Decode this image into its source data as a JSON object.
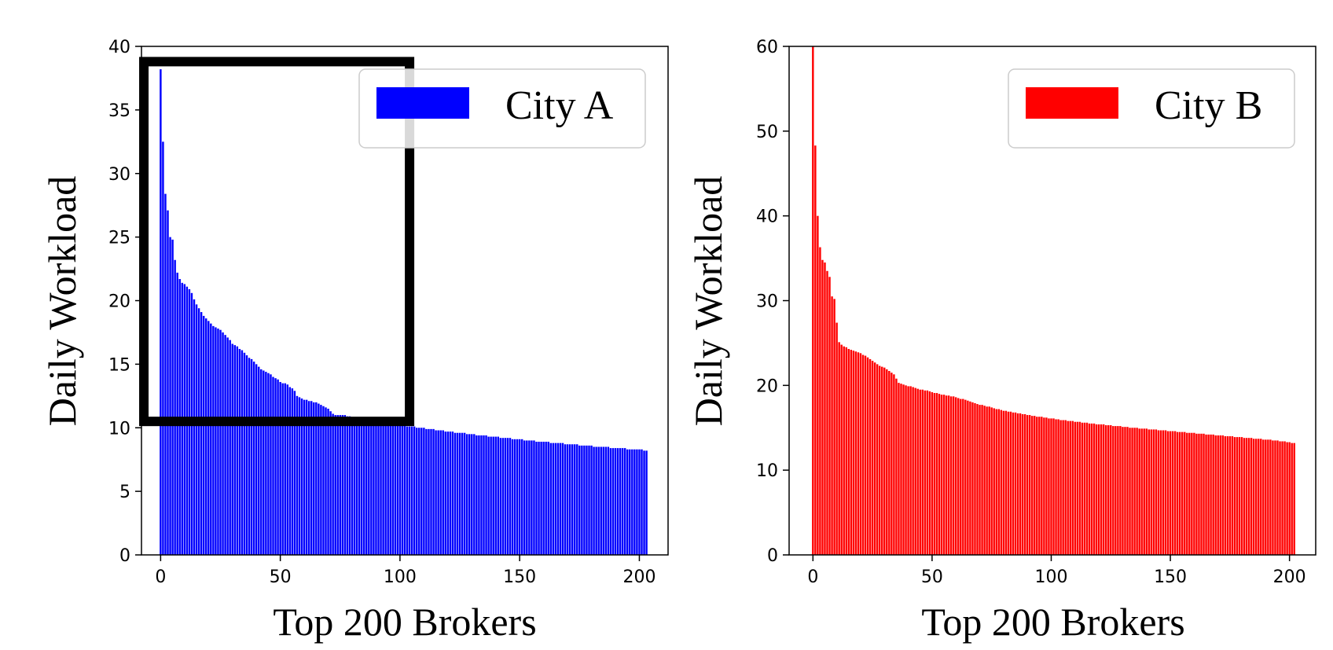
{
  "chart_data": [
    {
      "type": "bar",
      "panel": "left",
      "xlabel": "Top 200 Brokers",
      "ylabel": "Daily Workload",
      "xlim": [
        -8,
        212
      ],
      "ylim": [
        0,
        40
      ],
      "xticks": [
        "0",
        "50",
        "100",
        "150",
        "200"
      ],
      "yticks": [
        "0",
        "5",
        "10",
        "15",
        "20",
        "25",
        "30",
        "35",
        "40"
      ],
      "legend_position": "top-right",
      "series": [
        {
          "name": "City A",
          "color": "#0000ff",
          "values": [
            38.2,
            32.5,
            28.4,
            27.1,
            25.0,
            24.8,
            23.2,
            22.2,
            21.7,
            21.4,
            21.3,
            21.1,
            20.9,
            20.6,
            20.1,
            19.7,
            19.4,
            19.1,
            18.8,
            18.6,
            18.4,
            18.2,
            18.0,
            17.9,
            17.8,
            17.7,
            17.5,
            17.3,
            17.1,
            16.9,
            16.6,
            16.5,
            16.4,
            16.2,
            16.1,
            15.9,
            15.7,
            15.5,
            15.4,
            15.2,
            15.0,
            14.8,
            14.6,
            14.5,
            14.4,
            14.3,
            14.2,
            14.0,
            13.9,
            13.8,
            13.6,
            13.5,
            13.5,
            13.4,
            13.2,
            13.1,
            12.9,
            12.5,
            12.4,
            12.3,
            12.2,
            12.2,
            12.1,
            12.1,
            12.0,
            12.0,
            11.9,
            11.8,
            11.7,
            11.6,
            11.5,
            11.3,
            11.1,
            11.0,
            11.0,
            11.0,
            11.0,
            11.0,
            10.9,
            10.9,
            10.8,
            10.8,
            10.8,
            10.7,
            10.7,
            10.6,
            10.6,
            10.6,
            10.6,
            10.5,
            10.5,
            10.5,
            10.5,
            10.4,
            10.4,
            10.4,
            10.3,
            10.3,
            10.3,
            10.2,
            10.2,
            10.2,
            10.2,
            10.1,
            10.1,
            10.1,
            10.1,
            10.0,
            10.0,
            10.0,
            10.0,
            9.9,
            9.9,
            9.9,
            9.9,
            9.8,
            9.8,
            9.8,
            9.8,
            9.7,
            9.7,
            9.7,
            9.7,
            9.6,
            9.6,
            9.6,
            9.6,
            9.6,
            9.5,
            9.5,
            9.5,
            9.5,
            9.4,
            9.4,
            9.4,
            9.4,
            9.4,
            9.3,
            9.3,
            9.3,
            9.3,
            9.3,
            9.2,
            9.2,
            9.2,
            9.2,
            9.2,
            9.1,
            9.1,
            9.1,
            9.1,
            9.1,
            9.0,
            9.0,
            9.0,
            9.0,
            9.0,
            8.9,
            8.9,
            8.9,
            8.9,
            8.9,
            8.9,
            8.8,
            8.8,
            8.8,
            8.8,
            8.8,
            8.8,
            8.7,
            8.7,
            8.7,
            8.7,
            8.7,
            8.7,
            8.6,
            8.6,
            8.6,
            8.6,
            8.6,
            8.6,
            8.5,
            8.5,
            8.5,
            8.5,
            8.5,
            8.5,
            8.5,
            8.4,
            8.4,
            8.4,
            8.4,
            8.4,
            8.4,
            8.4,
            8.3,
            8.3,
            8.3,
            8.3,
            8.3,
            8.3,
            8.3,
            8.2,
            8.2
          ]
        }
      ],
      "annotations": [
        {
          "type": "highlight-box",
          "x_range": [
            -7,
            104
          ],
          "y_range": [
            10.5,
            38.8
          ],
          "color": "#000000"
        }
      ]
    },
    {
      "type": "bar",
      "panel": "right",
      "xlabel": "Top 200 Brokers",
      "ylabel": "Daily Workload",
      "xlim": [
        -10,
        211
      ],
      "ylim": [
        0,
        60
      ],
      "xticks": [
        "0",
        "50",
        "100",
        "150",
        "200"
      ],
      "yticks": [
        "0",
        "10",
        "20",
        "30",
        "40",
        "50",
        "60"
      ],
      "legend_position": "top-right",
      "series": [
        {
          "name": "City B",
          "color": "#ff0000",
          "values": [
            60.0,
            48.3,
            40.0,
            36.3,
            34.8,
            34.5,
            33.5,
            32.8,
            30.5,
            30.2,
            27.4,
            25.1,
            24.8,
            24.6,
            24.5,
            24.3,
            24.2,
            24.1,
            24.0,
            23.9,
            23.8,
            23.6,
            23.5,
            23.3,
            23.1,
            22.9,
            22.7,
            22.5,
            22.3,
            22.2,
            22.1,
            21.9,
            21.7,
            21.5,
            21.3,
            20.8,
            20.3,
            20.2,
            20.1,
            20.0,
            19.9,
            19.9,
            19.8,
            19.7,
            19.6,
            19.5,
            19.5,
            19.4,
            19.4,
            19.3,
            19.2,
            19.1,
            19.1,
            19.0,
            18.9,
            18.9,
            18.8,
            18.8,
            18.7,
            18.7,
            18.6,
            18.5,
            18.4,
            18.4,
            18.3,
            18.2,
            18.1,
            18.0,
            17.9,
            17.8,
            17.7,
            17.7,
            17.6,
            17.5,
            17.5,
            17.4,
            17.3,
            17.2,
            17.2,
            17.1,
            17.0,
            17.0,
            16.9,
            16.9,
            16.8,
            16.8,
            16.7,
            16.7,
            16.6,
            16.6,
            16.5,
            16.5,
            16.4,
            16.4,
            16.3,
            16.3,
            16.3,
            16.2,
            16.2,
            16.1,
            16.1,
            16.1,
            16.0,
            16.0,
            15.9,
            15.9,
            15.9,
            15.8,
            15.8,
            15.8,
            15.7,
            15.7,
            15.7,
            15.6,
            15.6,
            15.6,
            15.5,
            15.5,
            15.5,
            15.4,
            15.4,
            15.4,
            15.4,
            15.3,
            15.3,
            15.3,
            15.2,
            15.2,
            15.2,
            15.2,
            15.1,
            15.1,
            15.1,
            15.0,
            15.0,
            15.0,
            15.0,
            14.9,
            14.9,
            14.9,
            14.9,
            14.8,
            14.8,
            14.8,
            14.8,
            14.7,
            14.7,
            14.7,
            14.7,
            14.6,
            14.6,
            14.6,
            14.6,
            14.5,
            14.5,
            14.5,
            14.5,
            14.4,
            14.4,
            14.4,
            14.4,
            14.3,
            14.3,
            14.3,
            14.3,
            14.2,
            14.2,
            14.2,
            14.2,
            14.1,
            14.1,
            14.1,
            14.1,
            14.0,
            14.0,
            14.0,
            14.0,
            13.9,
            13.9,
            13.9,
            13.9,
            13.8,
            13.8,
            13.8,
            13.8,
            13.7,
            13.7,
            13.7,
            13.7,
            13.6,
            13.6,
            13.6,
            13.6,
            13.5,
            13.5,
            13.5,
            13.4,
            13.4,
            13.4,
            13.3,
            13.3,
            13.2,
            13.2
          ]
        }
      ]
    }
  ]
}
